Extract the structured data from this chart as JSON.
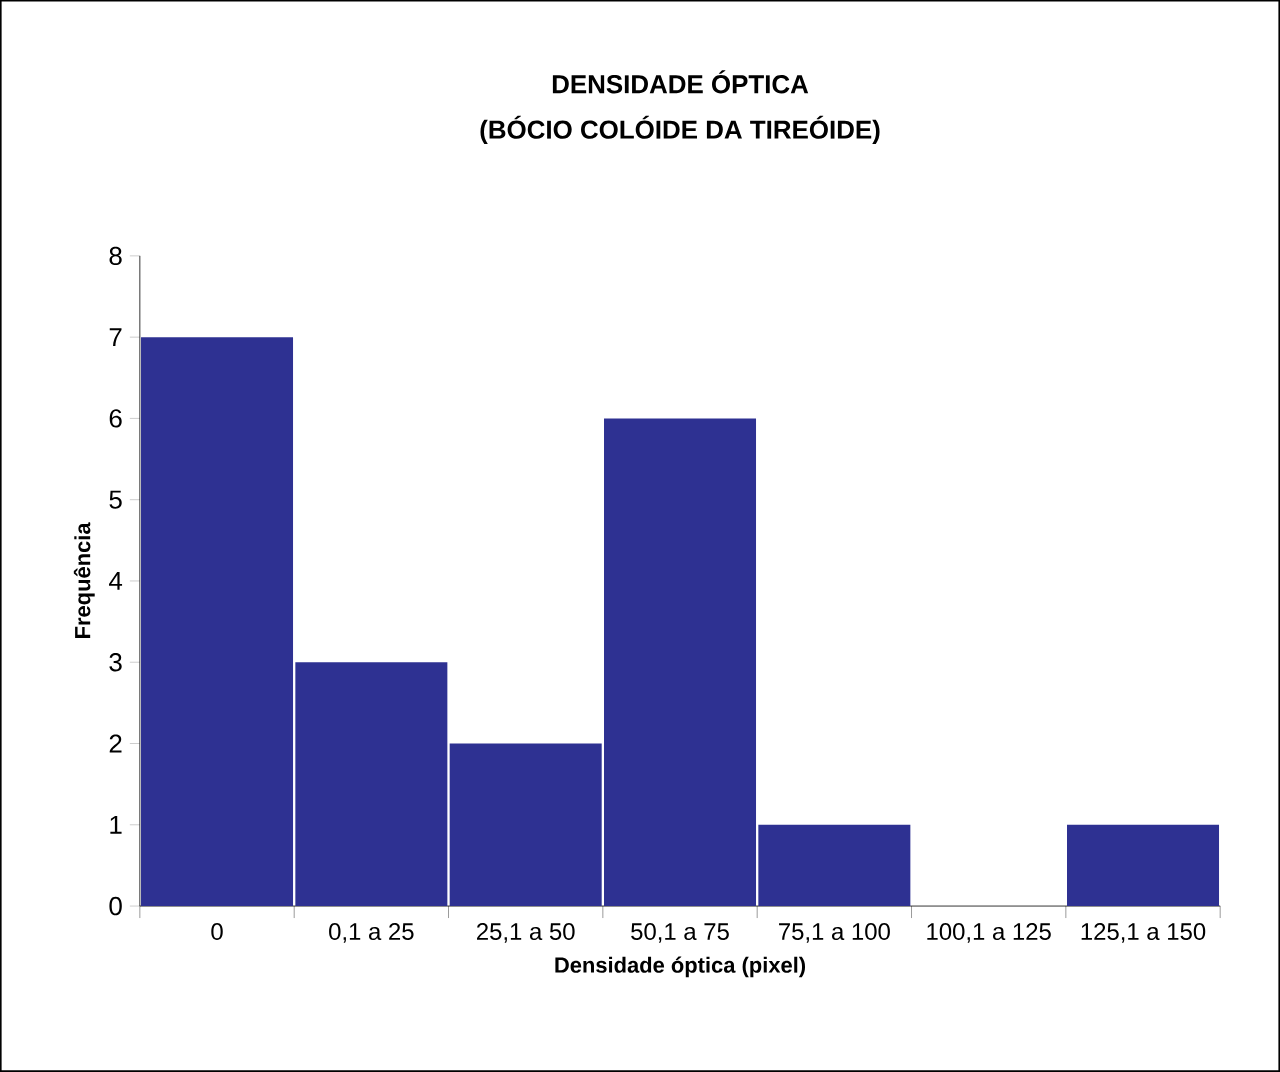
{
  "chart_data": {
    "type": "bar",
    "title": "DENSIDADE ÓPTICA",
    "subtitle": "(BÓCIO COLÓIDE DA TIREÓIDE)",
    "xlabel": "Densidade óptica (pixel)",
    "ylabel": "Frequência",
    "categories": [
      "0",
      "0,1 a 25",
      "25,1 a 50",
      "50,1 a 75",
      "75,1 a 100",
      "100,1 a 125",
      "125,1 a 150"
    ],
    "values": [
      7,
      3,
      2,
      6,
      1,
      0,
      1
    ],
    "color": "#2e3192",
    "ylim": [
      0,
      8
    ],
    "yticks": [
      0,
      1,
      2,
      3,
      4,
      5,
      6,
      7,
      8
    ],
    "grid": false
  }
}
